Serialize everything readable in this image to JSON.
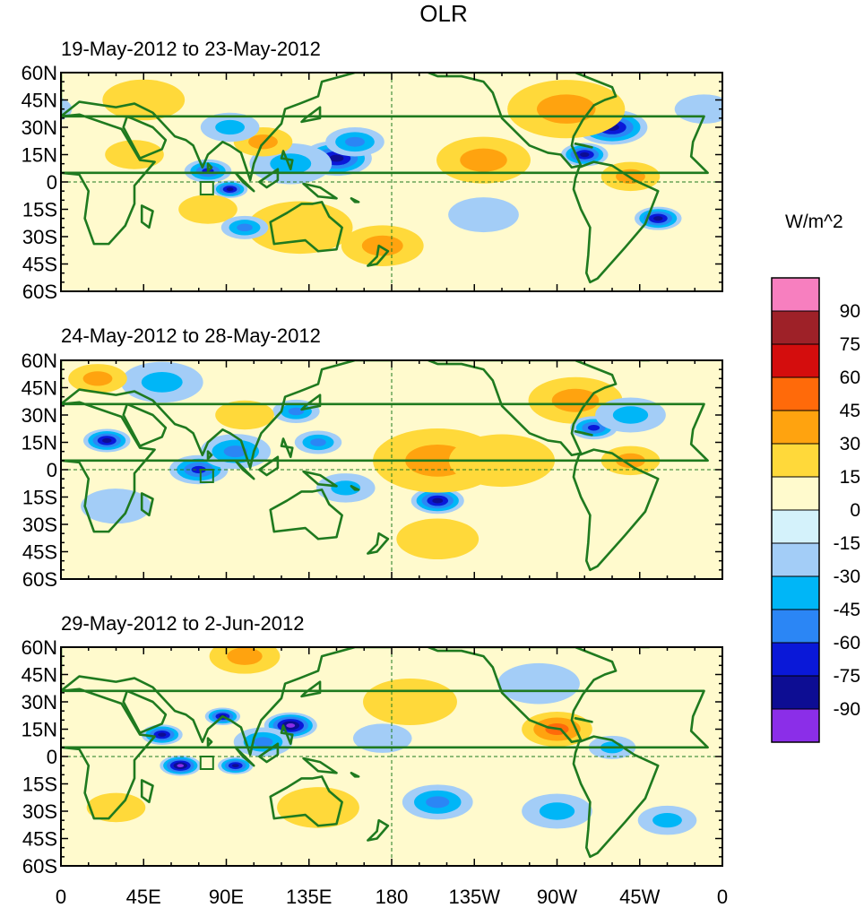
{
  "figure": {
    "title": "OLR",
    "units": "W/m^2",
    "panels": [
      {
        "id": "p1",
        "title": "19-May-2012 to 23-May-2012"
      },
      {
        "id": "p2",
        "title": "24-May-2012 to 28-May-2012"
      },
      {
        "id": "p3",
        "title": "29-May-2012 to 2-Jun-2012"
      }
    ],
    "lat_labels": [
      "60N",
      "45N",
      "30N",
      "15N",
      "0",
      "15S",
      "30S",
      "45S",
      "60S"
    ],
    "lon_labels": [
      "0",
      "45E",
      "90E",
      "135E",
      "180",
      "135W",
      "90W",
      "45W",
      "0"
    ],
    "colorbar": {
      "labels": [
        "90",
        "75",
        "60",
        "45",
        "30",
        "15",
        "0",
        "-15",
        "-30",
        "-45",
        "-60",
        "-75",
        "-90"
      ],
      "colors": [
        "#f77fbf",
        "#9e2128",
        "#d40d0d",
        "#ff6a0a",
        "#ffa30f",
        "#ffd93a",
        "#fffacd",
        "#d4f2fb",
        "#a3cdf7",
        "#00b6f7",
        "#2b86f5",
        "#0a18d8",
        "#0d0d93",
        "#8b2ee8"
      ]
    },
    "anomalies": [
      [
        {
          "lon": 80,
          "lat": 6,
          "r": 8,
          "v": -60
        },
        {
          "lon": 92,
          "lat": -4,
          "r": 6,
          "v": -75
        },
        {
          "lon": 150,
          "lat": 13,
          "r": 12,
          "v": -80
        },
        {
          "lon": 125,
          "lat": 10,
          "r": 14,
          "v": -40
        },
        {
          "lon": 160,
          "lat": 22,
          "r": 10,
          "v": -45
        },
        {
          "lon": 110,
          "lat": 22,
          "r": 10,
          "v": 30
        },
        {
          "lon": 92,
          "lat": 30,
          "r": 10,
          "v": -30
        },
        {
          "lon": 300,
          "lat": 30,
          "r": 12,
          "v": -85
        },
        {
          "lon": 285,
          "lat": 15,
          "r": 8,
          "v": -75
        },
        {
          "lon": 275,
          "lat": 40,
          "r": 20,
          "v": 30
        },
        {
          "lon": 230,
          "lat": 12,
          "r": 16,
          "v": 30
        },
        {
          "lon": 310,
          "lat": 3,
          "r": 10,
          "v": 35
        },
        {
          "lon": 325,
          "lat": -20,
          "r": 8,
          "v": -75
        },
        {
          "lon": 130,
          "lat": -25,
          "r": 18,
          "v": 20
        },
        {
          "lon": 175,
          "lat": -35,
          "r": 14,
          "v": 30
        },
        {
          "lon": 80,
          "lat": -15,
          "r": 10,
          "v": 25
        },
        {
          "lon": 100,
          "lat": -25,
          "r": 8,
          "v": -45
        },
        {
          "lon": 230,
          "lat": -18,
          "r": 12,
          "v": -25
        },
        {
          "lon": 45,
          "lat": 45,
          "r": 14,
          "v": 25
        },
        {
          "lon": 40,
          "lat": 15,
          "r": 10,
          "v": 15
        },
        {
          "lon": 350,
          "lat": 40,
          "r": 10,
          "v": -25
        }
      ],
      [
        {
          "lon": 25,
          "lat": 16,
          "r": 8,
          "v": -75
        },
        {
          "lon": 75,
          "lat": 0,
          "r": 10,
          "v": -70
        },
        {
          "lon": 95,
          "lat": 10,
          "r": 12,
          "v": -50
        },
        {
          "lon": 140,
          "lat": 15,
          "r": 8,
          "v": -55
        },
        {
          "lon": 128,
          "lat": 32,
          "r": 8,
          "v": -55
        },
        {
          "lon": 205,
          "lat": -17,
          "r": 9,
          "v": -85
        },
        {
          "lon": 205,
          "lat": 5,
          "r": 22,
          "v": 30
        },
        {
          "lon": 205,
          "lat": -38,
          "r": 14,
          "v": 25
        },
        {
          "lon": 280,
          "lat": 38,
          "r": 16,
          "v": 35
        },
        {
          "lon": 290,
          "lat": 23,
          "r": 8,
          "v": -60
        },
        {
          "lon": 310,
          "lat": 30,
          "r": 12,
          "v": -30
        },
        {
          "lon": 55,
          "lat": 48,
          "r": 14,
          "v": -30
        },
        {
          "lon": 20,
          "lat": 50,
          "r": 10,
          "v": 35
        },
        {
          "lon": 155,
          "lat": -10,
          "r": 10,
          "v": -40
        },
        {
          "lon": 100,
          "lat": 30,
          "r": 10,
          "v": 25
        },
        {
          "lon": 310,
          "lat": 5,
          "r": 10,
          "v": 30
        },
        {
          "lon": 240,
          "lat": 5,
          "r": 18,
          "v": 20
        },
        {
          "lon": 30,
          "lat": -20,
          "r": 12,
          "v": -20
        }
      ],
      [
        {
          "lon": 55,
          "lat": 12,
          "r": 7,
          "v": -80
        },
        {
          "lon": 65,
          "lat": -5,
          "r": 7,
          "v": -90
        },
        {
          "lon": 95,
          "lat": -5,
          "r": 6,
          "v": -85
        },
        {
          "lon": 88,
          "lat": 22,
          "r": 6,
          "v": -75
        },
        {
          "lon": 125,
          "lat": 17,
          "r": 9,
          "v": -90
        },
        {
          "lon": 110,
          "lat": 8,
          "r": 10,
          "v": -45
        },
        {
          "lon": 205,
          "lat": -25,
          "r": 12,
          "v": -50
        },
        {
          "lon": 270,
          "lat": 15,
          "r": 12,
          "v": 50
        },
        {
          "lon": 300,
          "lat": 5,
          "r": 8,
          "v": -40
        },
        {
          "lon": 140,
          "lat": -28,
          "r": 14,
          "v": 25
        },
        {
          "lon": 270,
          "lat": -30,
          "r": 12,
          "v": -35
        },
        {
          "lon": 260,
          "lat": 40,
          "r": 14,
          "v": -25
        },
        {
          "lon": 190,
          "lat": 30,
          "r": 16,
          "v": 20
        },
        {
          "lon": 30,
          "lat": -28,
          "r": 10,
          "v": 25
        },
        {
          "lon": 100,
          "lat": 55,
          "r": 12,
          "v": 30
        },
        {
          "lon": 175,
          "lat": 10,
          "r": 10,
          "v": -25
        },
        {
          "lon": 330,
          "lat": -35,
          "r": 10,
          "v": -30
        }
      ]
    ]
  }
}
